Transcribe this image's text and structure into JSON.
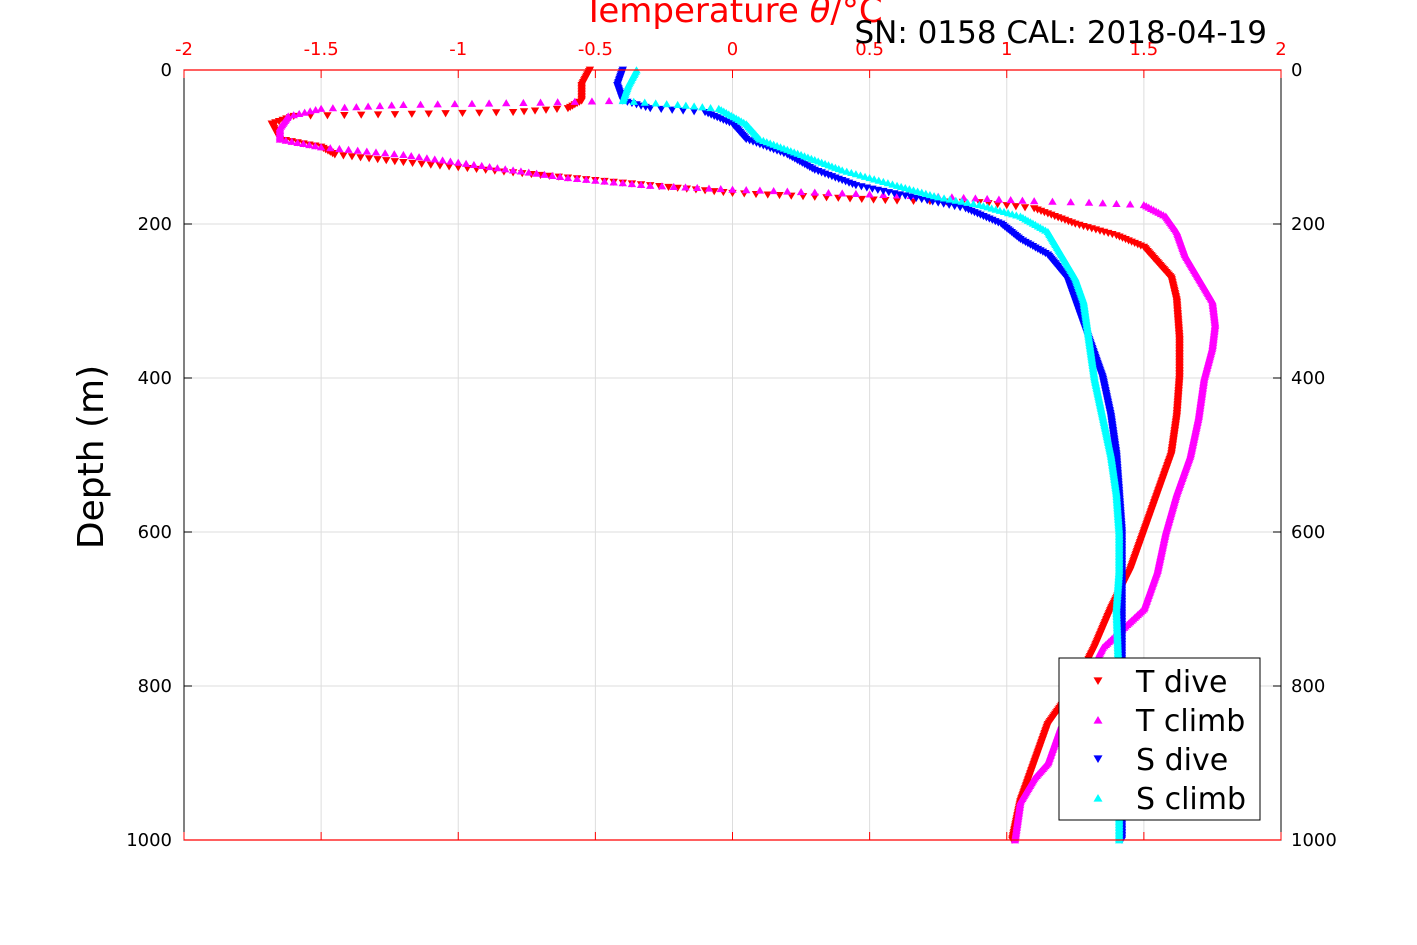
{
  "chart_data": {
    "type": "scatter",
    "title": "SN: 0158  CAL: 2018-04-19",
    "top_axis": {
      "label_prefix": "Temperature ",
      "label_symbol": "θ",
      "label_suffix": "/°C",
      "range": [
        -2,
        2
      ],
      "ticks": [
        -2,
        -1.5,
        -1,
        -0.5,
        0,
        0.5,
        1,
        1.5,
        2
      ],
      "color": "#ff0000"
    },
    "ylabel": "Depth (m)",
    "y_range": [
      0,
      1000
    ],
    "y_reversed": true,
    "y_ticks": [
      0,
      200,
      400,
      600,
      800,
      1000
    ],
    "grid": true,
    "legend_position": "bottom-right",
    "series": [
      {
        "name": "T dive",
        "marker": "triangle-down",
        "color": "#ff0000",
        "points": [
          [
            -0.52,
            0
          ],
          [
            -0.55,
            20
          ],
          [
            -0.55,
            40
          ],
          [
            -0.6,
            50
          ],
          [
            -0.8,
            55
          ],
          [
            -1.6,
            60
          ],
          [
            -1.68,
            70
          ],
          [
            -1.65,
            90
          ],
          [
            -1.5,
            100
          ],
          [
            -1.45,
            110
          ],
          [
            -1.2,
            120
          ],
          [
            -0.9,
            130
          ],
          [
            -0.6,
            140
          ],
          [
            -0.3,
            150
          ],
          [
            0.0,
            160
          ],
          [
            0.3,
            165
          ],
          [
            0.6,
            170
          ],
          [
            0.9,
            172
          ],
          [
            1.1,
            180
          ],
          [
            1.25,
            200
          ],
          [
            1.4,
            215
          ],
          [
            1.5,
            230
          ],
          [
            1.55,
            250
          ],
          [
            1.6,
            270
          ],
          [
            1.62,
            300
          ],
          [
            1.63,
            350
          ],
          [
            1.63,
            400
          ],
          [
            1.62,
            450
          ],
          [
            1.6,
            500
          ],
          [
            1.55,
            550
          ],
          [
            1.5,
            600
          ],
          [
            1.45,
            650
          ],
          [
            1.38,
            700
          ],
          [
            1.32,
            750
          ],
          [
            1.25,
            800
          ],
          [
            1.15,
            850
          ],
          [
            1.1,
            900
          ],
          [
            1.05,
            950
          ],
          [
            1.02,
            1000
          ]
        ]
      },
      {
        "name": "T climb",
        "marker": "triangle-up",
        "color": "#ff00ff",
        "points": [
          [
            -0.45,
            40
          ],
          [
            -0.7,
            42
          ],
          [
            -1.2,
            45
          ],
          [
            -1.5,
            50
          ],
          [
            -1.62,
            60
          ],
          [
            -1.65,
            75
          ],
          [
            -1.65,
            90
          ],
          [
            -1.5,
            100
          ],
          [
            -1.2,
            110
          ],
          [
            -1.0,
            120
          ],
          [
            -0.8,
            130
          ],
          [
            -0.6,
            140
          ],
          [
            -0.3,
            150
          ],
          [
            0.0,
            155
          ],
          [
            0.4,
            160
          ],
          [
            0.8,
            165
          ],
          [
            1.1,
            170
          ],
          [
            1.3,
            172
          ],
          [
            1.5,
            175
          ],
          [
            1.58,
            190
          ],
          [
            1.62,
            210
          ],
          [
            1.65,
            240
          ],
          [
            1.7,
            270
          ],
          [
            1.75,
            300
          ],
          [
            1.76,
            330
          ],
          [
            1.75,
            360
          ],
          [
            1.72,
            400
          ],
          [
            1.7,
            450
          ],
          [
            1.67,
            500
          ],
          [
            1.62,
            550
          ],
          [
            1.58,
            600
          ],
          [
            1.55,
            650
          ],
          [
            1.5,
            700
          ],
          [
            1.35,
            750
          ],
          [
            1.28,
            800
          ],
          [
            1.2,
            850
          ],
          [
            1.15,
            900
          ],
          [
            1.1,
            920
          ],
          [
            1.05,
            950
          ],
          [
            1.03,
            1000
          ]
        ]
      },
      {
        "name": "S dive",
        "marker": "triangle-down",
        "color": "#0000ff",
        "points": [
          [
            -0.4,
            0
          ],
          [
            -0.42,
            20
          ],
          [
            -0.4,
            40
          ],
          [
            -0.3,
            50
          ],
          [
            -0.1,
            55
          ],
          [
            0.0,
            70
          ],
          [
            0.05,
            90
          ],
          [
            0.2,
            110
          ],
          [
            0.3,
            130
          ],
          [
            0.45,
            150
          ],
          [
            0.65,
            165
          ],
          [
            0.85,
            180
          ],
          [
            0.98,
            200
          ],
          [
            1.05,
            220
          ],
          [
            1.15,
            240
          ],
          [
            1.22,
            270
          ],
          [
            1.25,
            300
          ],
          [
            1.3,
            350
          ],
          [
            1.35,
            400
          ],
          [
            1.38,
            450
          ],
          [
            1.4,
            500
          ],
          [
            1.41,
            550
          ],
          [
            1.42,
            600
          ],
          [
            1.42,
            650
          ],
          [
            1.42,
            700
          ],
          [
            1.42,
            750
          ],
          [
            1.42,
            800
          ],
          [
            1.42,
            900
          ],
          [
            1.42,
            1000
          ]
        ]
      },
      {
        "name": "S climb",
        "marker": "triangle-up",
        "color": "#00ffff",
        "points": [
          [
            -0.35,
            0
          ],
          [
            -0.38,
            20
          ],
          [
            -0.4,
            40
          ],
          [
            -0.2,
            45
          ],
          [
            -0.05,
            50
          ],
          [
            0.05,
            70
          ],
          [
            0.1,
            90
          ],
          [
            0.25,
            110
          ],
          [
            0.4,
            130
          ],
          [
            0.6,
            150
          ],
          [
            0.75,
            165
          ],
          [
            0.9,
            175
          ],
          [
            1.05,
            190
          ],
          [
            1.15,
            210
          ],
          [
            1.2,
            240
          ],
          [
            1.25,
            270
          ],
          [
            1.28,
            300
          ],
          [
            1.3,
            350
          ],
          [
            1.32,
            400
          ],
          [
            1.35,
            450
          ],
          [
            1.38,
            500
          ],
          [
            1.4,
            550
          ],
          [
            1.41,
            600
          ],
          [
            1.41,
            650
          ],
          [
            1.4,
            700
          ],
          [
            1.41,
            800
          ],
          [
            1.41,
            900
          ],
          [
            1.41,
            1000
          ]
        ]
      }
    ]
  }
}
